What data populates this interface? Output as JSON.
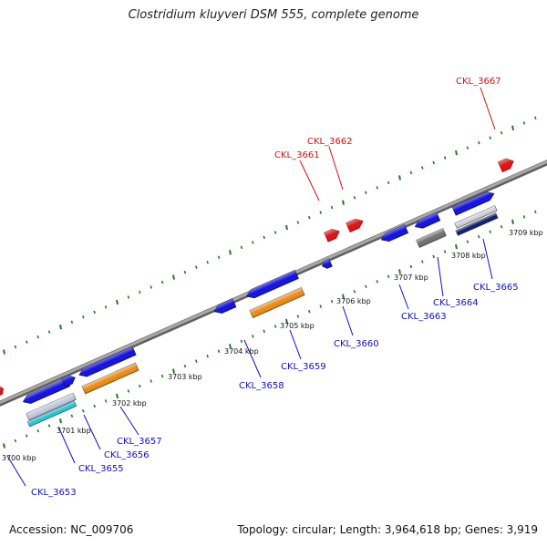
{
  "title": "Clostridium kluyveri DSM 555, complete genome",
  "footer": {
    "accession": "Accession: NC_009706",
    "summary": "Topology: circular; Length: 3,964,618 bp; Genes: 3,919"
  },
  "colors": {
    "backbone": "#8a8a8a",
    "dots": "#1e7d1e",
    "forward_gene": "#1010e0",
    "reverse_gene": "#1010e0",
    "rna": "#e01010",
    "orange": "#f08a10",
    "gray": "#707070",
    "navy": "#0a1a70",
    "cyan": "#20c8d8",
    "label_blue": "#1010c0",
    "label_red": "#d01010"
  },
  "scale": {
    "unit": "kbp",
    "ticks": [
      3700,
      3701,
      3702,
      3703,
      3704,
      3705,
      3706,
      3707,
      3708,
      3709
    ],
    "tick_labels": [
      "3700 kbp",
      "3701 kbp",
      "3702 kbp",
      "3703 kbp",
      "3704 kbp",
      "3705 kbp",
      "3706 kbp",
      "3707 kbp",
      "3708 kbp",
      "3709 kbp"
    ]
  },
  "genes": [
    {
      "id": "CKL_3653",
      "label": "CKL_3653",
      "kind": "cds"
    },
    {
      "id": "CKL_3655",
      "label": "CKL_3655",
      "kind": "cds"
    },
    {
      "id": "CKL_3656",
      "label": "CKL_3656",
      "kind": "cds"
    },
    {
      "id": "CKL_3657",
      "label": "CKL_3657",
      "kind": "cds"
    },
    {
      "id": "CKL_3658",
      "label": "CKL_3658",
      "kind": "cds"
    },
    {
      "id": "CKL_3659",
      "label": "CKL_3659",
      "kind": "cds"
    },
    {
      "id": "CKL_3660",
      "label": "CKL_3660",
      "kind": "cds"
    },
    {
      "id": "CKL_3661",
      "label": "CKL_3661",
      "kind": "rna"
    },
    {
      "id": "CKL_3662",
      "label": "CKL_3662",
      "kind": "rna"
    },
    {
      "id": "CKL_3663",
      "label": "CKL_3663",
      "kind": "cds"
    },
    {
      "id": "CKL_3664",
      "label": "CKL_3664",
      "kind": "cds"
    },
    {
      "id": "CKL_3665",
      "label": "CKL_3665",
      "kind": "cds"
    },
    {
      "id": "CKL_3667",
      "label": "CKL_3667",
      "kind": "rna"
    }
  ]
}
